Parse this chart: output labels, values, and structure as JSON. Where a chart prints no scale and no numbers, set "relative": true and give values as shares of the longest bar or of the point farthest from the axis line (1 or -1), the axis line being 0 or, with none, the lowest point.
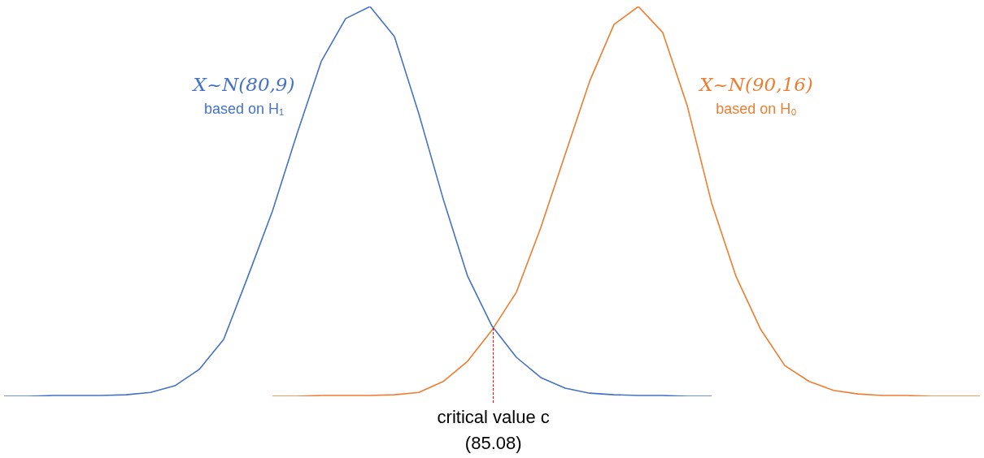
{
  "chart_data": {
    "type": "line",
    "relative": true,
    "legend": false,
    "marker": "none",
    "categories": [
      null,
      null,
      null,
      null,
      null,
      null,
      null,
      null,
      null,
      null,
      null,
      null,
      null,
      null,
      null,
      null,
      null,
      null,
      null,
      null,
      null,
      null,
      null,
      null,
      null,
      null,
      null,
      null,
      null,
      null,
      null,
      null,
      null,
      null,
      null,
      null,
      null,
      null,
      null,
      null,
      null
    ],
    "series": [
      {
        "name": "X~N(80,9)\nbased on H₁",
        "color": "#4472c4",
        "values": [
          0,
          0,
          0.002,
          0.002,
          0.002,
          0.004,
          0.01,
          0.027,
          0.069,
          0.146,
          0.308,
          0.475,
          0.672,
          0.859,
          0.969,
          1,
          0.923,
          0.725,
          0.506,
          0.308,
          0.18,
          0.1,
          0.048,
          0.021,
          0.008,
          0.004,
          0.002,
          0.002,
          0,
          0,
          null,
          null,
          null,
          null,
          null,
          null,
          null,
          null,
          null,
          null,
          null
        ]
      },
      {
        "name": "X~N(90,16)\nbased on H₀",
        "color": "#ed7d31",
        "values": [
          null,
          null,
          null,
          null,
          null,
          null,
          null,
          null,
          null,
          null,
          null,
          0,
          0,
          0.002,
          0.002,
          0.002,
          0.004,
          0.01,
          0.038,
          0.09,
          0.17,
          0.267,
          0.433,
          0.621,
          0.808,
          0.954,
          1,
          0.933,
          0.746,
          0.496,
          0.308,
          0.173,
          0.079,
          0.038,
          0.015,
          0.006,
          0.002,
          0.002,
          0,
          0,
          0
        ]
      }
    ],
    "annotations": [
      "critical value c\n(85.08)"
    ]
  }
}
